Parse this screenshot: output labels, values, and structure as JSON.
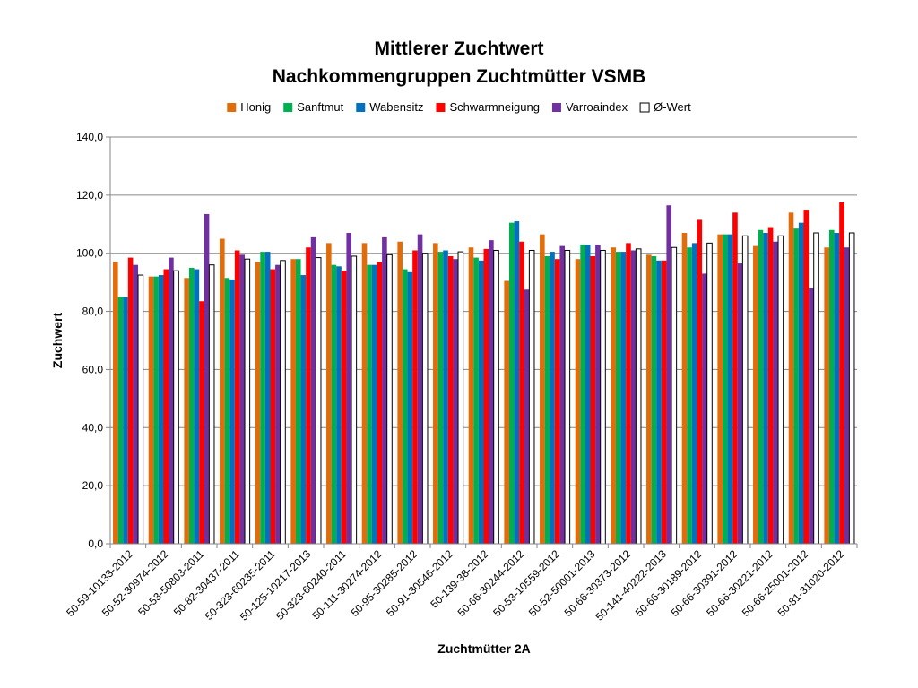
{
  "chart_data": {
    "type": "bar",
    "title": "Mittlerer Zuchtwert",
    "subtitle": "Nachkommengruppen Zuchtmütter VSMB",
    "xlabel": "Zuchtmütter 2A",
    "ylabel": "Zuchwert",
    "ylim": [
      0,
      140
    ],
    "yticks": [
      "0,0",
      "20,0",
      "40,0",
      "60,0",
      "80,0",
      "100,0",
      "120,0",
      "140,0"
    ],
    "grid": true,
    "legend_position": "top",
    "categories": [
      "50-59-10133-2012",
      "50-52-30974-2012",
      "50-53-50803-2011",
      "50-82-30437-2011",
      "50-323-60235-2011",
      "50-125-10217-2013",
      "50-323-60240-2011",
      "50-111-30274-2012",
      "50-95-30285-2012",
      "50-91-30546-2012",
      "50-139-38-2012",
      "50-66-30244-2012",
      "50-53-10559-2012",
      "50-52-50001-2013",
      "50-66-30373-2012",
      "50-141-40222-2013",
      "50-66-30189-2012",
      "50-66-30391-2012",
      "50-66-30221-2012",
      "50-66-25001-2012",
      "50-81-31020-2012"
    ],
    "series": [
      {
        "name": "Honig",
        "color": "#E36C0A",
        "values": [
          97,
          92,
          91.5,
          105,
          97,
          98,
          103.5,
          103.5,
          104,
          103.5,
          102,
          90.5,
          106.5,
          98,
          102,
          99.5,
          107,
          106.5,
          102.5,
          114,
          102
        ]
      },
      {
        "name": "Sanftmut",
        "color": "#00B050",
        "values": [
          85,
          92,
          95,
          91.5,
          100.5,
          98,
          96,
          96,
          94.5,
          100.5,
          98.5,
          110.5,
          99,
          103,
          100.5,
          99,
          102,
          106.5,
          108,
          108.5,
          108
        ]
      },
      {
        "name": "Wabensitz",
        "color": "#0070C0",
        "values": [
          85,
          92.5,
          94.5,
          91,
          100.5,
          92.5,
          95.5,
          96,
          93.5,
          101,
          97.5,
          111,
          100.5,
          103,
          100.5,
          97.5,
          103.5,
          106.5,
          107,
          110.5,
          107
        ]
      },
      {
        "name": "Schwarmneigung",
        "color": "#FF0000",
        "values": [
          98.5,
          94.5,
          83.5,
          101,
          94.5,
          102,
          94,
          97,
          101,
          99,
          101.5,
          104,
          98,
          99,
          103.5,
          97.5,
          111.5,
          114,
          109,
          115,
          117.5
        ]
      },
      {
        "name": "Varroaindex",
        "color": "#7030A0",
        "values": [
          96,
          98.5,
          113.5,
          99.5,
          96,
          105.5,
          107,
          105.5,
          106.5,
          98,
          104.5,
          87.5,
          102.5,
          103,
          101,
          116.5,
          93,
          96.5,
          104,
          88,
          102
        ]
      },
      {
        "name": "Ø-Wert",
        "color": "#FFFFFF",
        "values": [
          92.5,
          94,
          96,
          98,
          97.5,
          98.5,
          99,
          99.5,
          100,
          100.5,
          101,
          101,
          101,
          101,
          101.5,
          102,
          103.5,
          106,
          106,
          107,
          107
        ]
      }
    ]
  }
}
